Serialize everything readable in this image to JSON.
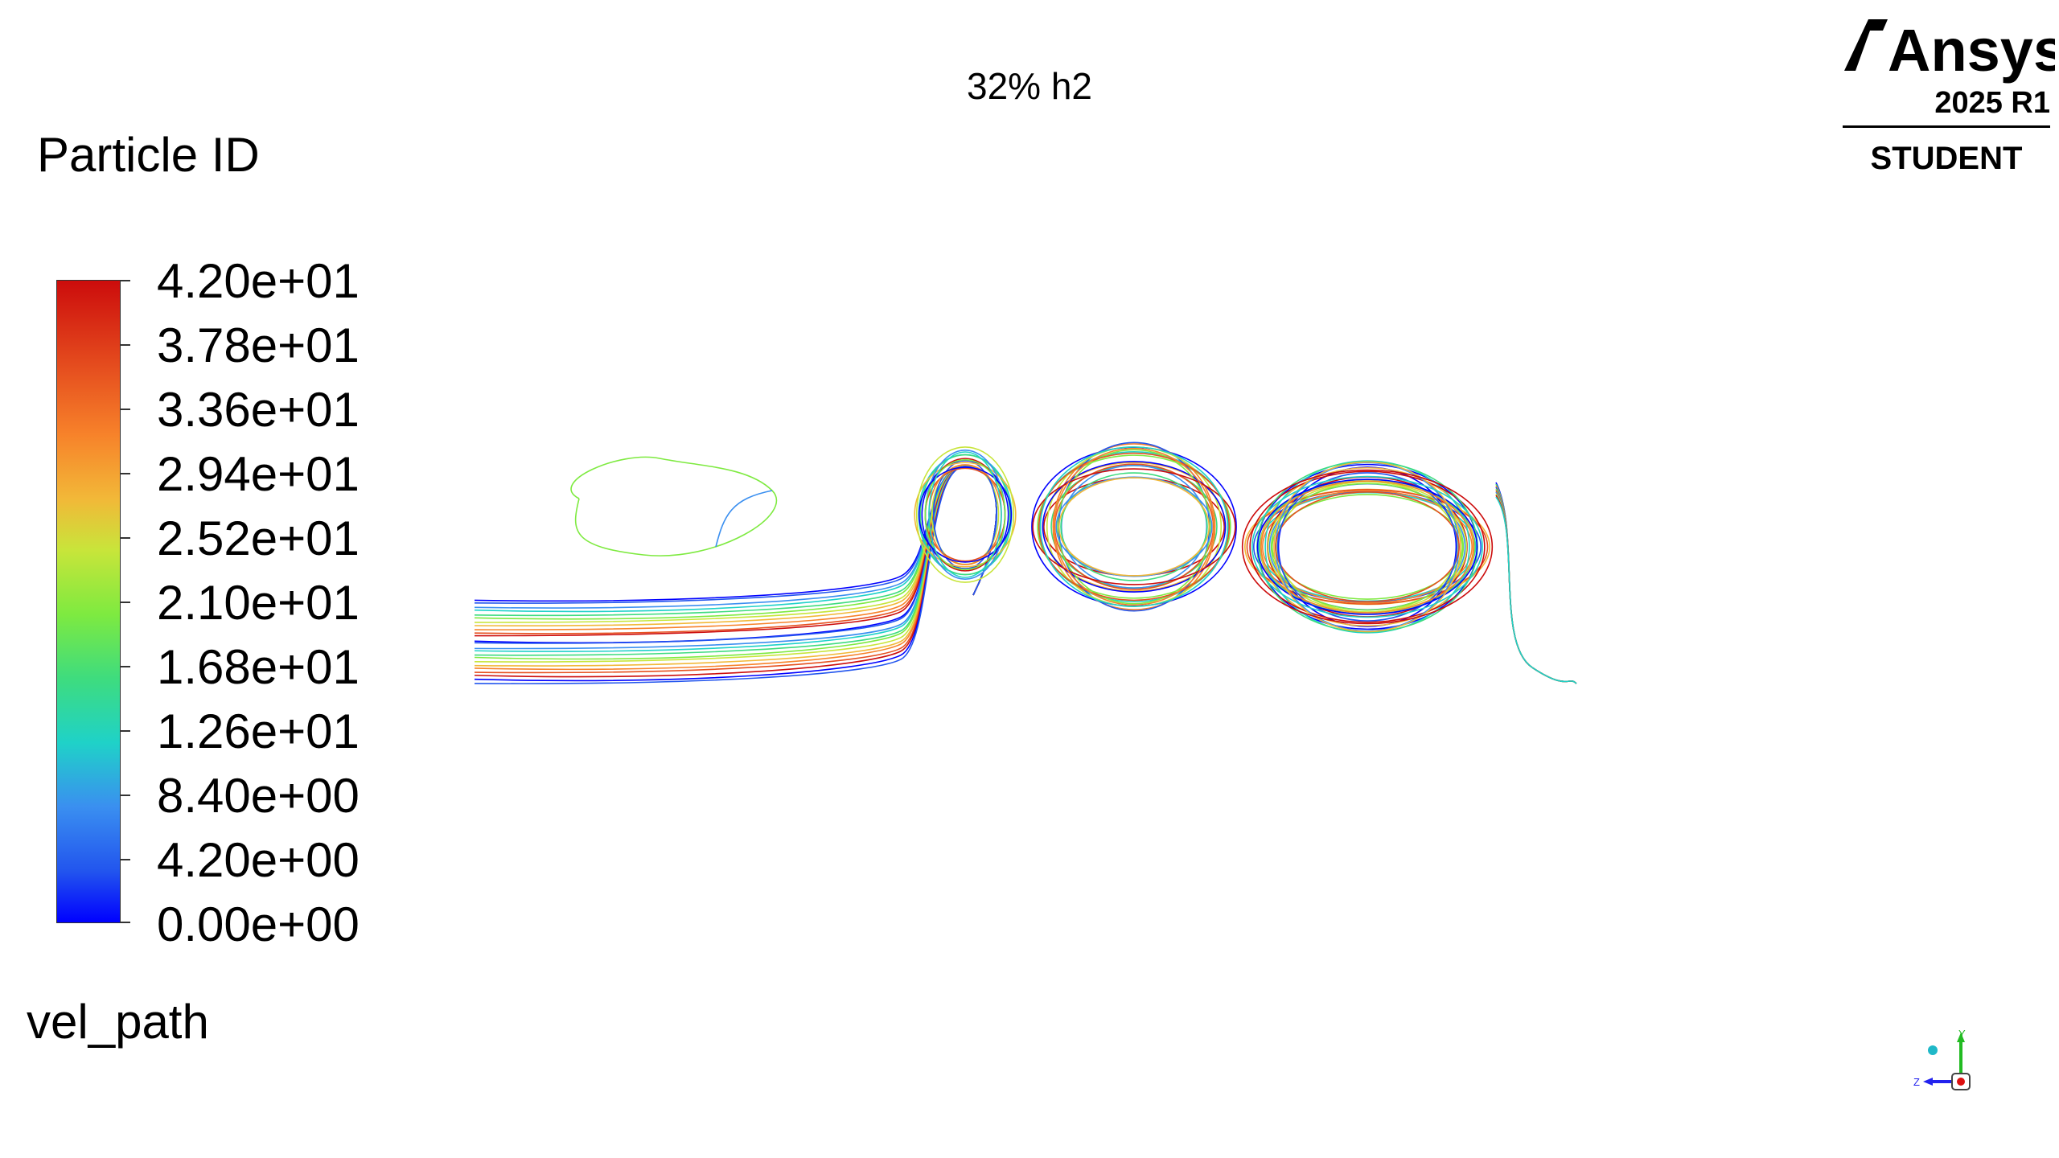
{
  "graphics_window": {
    "title": "32% h2"
  },
  "legend": {
    "title": "Particle ID",
    "ticks": [
      "4.20e+01",
      "3.78e+01",
      "3.36e+01",
      "2.94e+01",
      "2.52e+01",
      "2.10e+01",
      "1.68e+01",
      "1.26e+01",
      "8.40e+00",
      "4.20e+00",
      "0.00e+00"
    ],
    "footer": "vel_path",
    "colormap": [
      "#0000ff",
      "#3a8ff0",
      "#1fd2c8",
      "#3edc7e",
      "#c8e53a",
      "#f2b838",
      "#f7822a",
      "#cc0c0c"
    ]
  },
  "branding": {
    "name": "Ansys",
    "version": "2025 R1",
    "edition": "STUDENT"
  },
  "triad": {
    "y_label": "Y",
    "z_label": "Z",
    "y_color": "#22bb22",
    "z_color": "#2222ee",
    "x_color": "#dd1111"
  },
  "pathline_colors": [
    "#0000ff",
    "#2255ee",
    "#3a8ff0",
    "#1fd2c8",
    "#3edc7e",
    "#7eea40",
    "#c8e53a",
    "#f2b838",
    "#f7822a",
    "#e6501f",
    "#cc0c0c"
  ]
}
